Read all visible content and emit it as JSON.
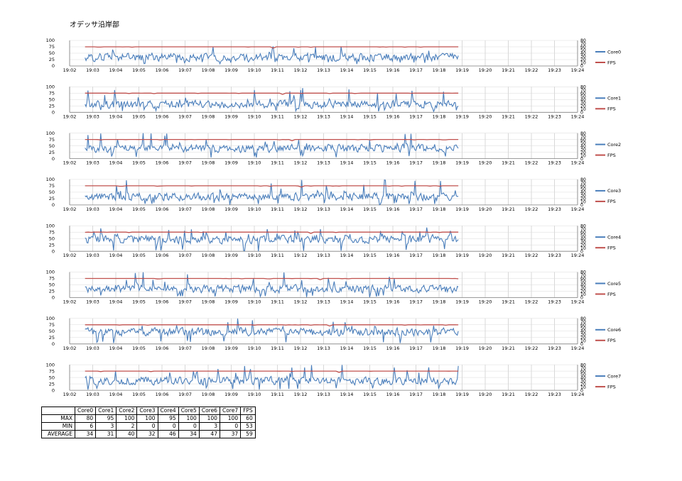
{
  "title": "オデッサ沿岸部",
  "legend_color_core": "#4a7ebb",
  "legend_color_fps": "#c0504d",
  "chart_data": [
    {
      "type": "line",
      "series": [
        {
          "name": "Core0",
          "avg": 34,
          "min": 6,
          "max": 80
        },
        {
          "name": "FPS",
          "avg": 59,
          "min": 53,
          "max": 60
        }
      ],
      "ylim": [
        0,
        100
      ],
      "ylim_right": [
        0,
        80
      ],
      "y_ticks": [
        "0",
        "25",
        "50",
        "75",
        "100"
      ],
      "y_ticks_right": [
        "0",
        "10",
        "20",
        "30",
        "40",
        "50",
        "60",
        "70",
        "80"
      ],
      "x_ticks": [
        "19:02",
        "19:03",
        "19:04",
        "19:05",
        "19:06",
        "19:07",
        "19:08",
        "19:09",
        "19:10",
        "19:11",
        "19:12",
        "19:13",
        "19:14",
        "19:15",
        "19:16",
        "19:17",
        "19:18",
        "19:19",
        "19:20",
        "19:21",
        "19:22",
        "19:23",
        "19:24"
      ],
      "data_span": [
        "19:02:40",
        "19:18:50"
      ]
    },
    {
      "type": "line",
      "series": [
        {
          "name": "Core1",
          "avg": 31,
          "min": 3,
          "max": 95
        },
        {
          "name": "FPS",
          "avg": 59,
          "min": 53,
          "max": 60
        }
      ],
      "ylim": [
        0,
        100
      ],
      "ylim_right": [
        0,
        80
      ],
      "y_ticks": [
        "0",
        "25",
        "50",
        "75",
        "100"
      ],
      "y_ticks_right": [
        "0",
        "10",
        "20",
        "30",
        "40",
        "50",
        "60",
        "70",
        "80"
      ],
      "x_ticks": [
        "19:02",
        "19:03",
        "19:04",
        "19:05",
        "19:06",
        "19:07",
        "19:08",
        "19:09",
        "19:10",
        "19:11",
        "19:12",
        "19:13",
        "19:14",
        "19:15",
        "19:16",
        "19:17",
        "19:18",
        "19:19",
        "19:20",
        "19:21",
        "19:22",
        "19:23",
        "19:24"
      ],
      "data_span": [
        "19:02:40",
        "19:18:50"
      ]
    },
    {
      "type": "line",
      "series": [
        {
          "name": "Core2",
          "avg": 40,
          "min": 2,
          "max": 100
        },
        {
          "name": "FPS",
          "avg": 59,
          "min": 53,
          "max": 60
        }
      ],
      "ylim": [
        0,
        100
      ],
      "ylim_right": [
        0,
        80
      ],
      "y_ticks": [
        "0",
        "25",
        "50",
        "75",
        "100"
      ],
      "y_ticks_right": [
        "0",
        "10",
        "20",
        "30",
        "40",
        "50",
        "60",
        "70",
        "80"
      ],
      "x_ticks": [
        "19:02",
        "19:03",
        "19:04",
        "19:05",
        "19:06",
        "19:07",
        "19:08",
        "19:09",
        "19:10",
        "19:11",
        "19:12",
        "19:13",
        "19:14",
        "19:15",
        "19:16",
        "19:17",
        "19:18",
        "19:19",
        "19:20",
        "19:21",
        "19:22",
        "19:23",
        "19:24"
      ],
      "data_span": [
        "19:02:40",
        "19:18:50"
      ]
    },
    {
      "type": "line",
      "series": [
        {
          "name": "Core3",
          "avg": 32,
          "min": 0,
          "max": 100
        },
        {
          "name": "FPS",
          "avg": 59,
          "min": 53,
          "max": 60
        }
      ],
      "ylim": [
        0,
        100
      ],
      "ylim_right": [
        0,
        80
      ],
      "y_ticks": [
        "0",
        "25",
        "50",
        "75",
        "100"
      ],
      "y_ticks_right": [
        "0",
        "10",
        "20",
        "30",
        "40",
        "50",
        "60",
        "70",
        "80"
      ],
      "x_ticks": [
        "19:02",
        "19:03",
        "19:04",
        "19:05",
        "19:06",
        "19:07",
        "19:08",
        "19:09",
        "19:10",
        "19:11",
        "19:12",
        "19:13",
        "19:14",
        "19:15",
        "19:16",
        "19:17",
        "19:18",
        "19:19",
        "19:20",
        "19:21",
        "19:22",
        "19:23",
        "19:24"
      ],
      "data_span": [
        "19:02:40",
        "19:18:50"
      ]
    },
    {
      "type": "line",
      "series": [
        {
          "name": "Core4",
          "avg": 46,
          "min": 0,
          "max": 95
        },
        {
          "name": "FPS",
          "avg": 59,
          "min": 53,
          "max": 60
        }
      ],
      "ylim": [
        0,
        100
      ],
      "ylim_right": [
        0,
        80
      ],
      "y_ticks": [
        "0",
        "25",
        "50",
        "75",
        "100"
      ],
      "y_ticks_right": [
        "0",
        "10",
        "20",
        "30",
        "40",
        "50",
        "60",
        "70",
        "80"
      ],
      "x_ticks": [
        "19:02",
        "19:03",
        "19:04",
        "19:05",
        "19:06",
        "19:07",
        "19:08",
        "19:09",
        "19:10",
        "19:11",
        "19:12",
        "19:13",
        "19:14",
        "19:15",
        "19:16",
        "19:17",
        "19:18",
        "19:19",
        "19:20",
        "19:21",
        "19:22",
        "19:23",
        "19:24"
      ],
      "data_span": [
        "19:02:40",
        "19:18:50"
      ]
    },
    {
      "type": "line",
      "series": [
        {
          "name": "Core5",
          "avg": 34,
          "min": 0,
          "max": 100
        },
        {
          "name": "FPS",
          "avg": 59,
          "min": 53,
          "max": 60
        }
      ],
      "ylim": [
        0,
        100
      ],
      "ylim_right": [
        0,
        80
      ],
      "y_ticks": [
        "0",
        "25",
        "50",
        "75",
        "100"
      ],
      "y_ticks_right": [
        "0",
        "10",
        "20",
        "30",
        "40",
        "50",
        "60",
        "70",
        "80"
      ],
      "x_ticks": [
        "19:02",
        "19:03",
        "19:04",
        "19:05",
        "19:06",
        "19:07",
        "19:08",
        "19:09",
        "19:10",
        "19:11",
        "19:12",
        "19:13",
        "19:14",
        "19:15",
        "19:16",
        "19:17",
        "19:18",
        "19:19",
        "19:20",
        "19:21",
        "19:22",
        "19:23",
        "19:24"
      ],
      "data_span": [
        "19:02:40",
        "19:18:50"
      ]
    },
    {
      "type": "line",
      "series": [
        {
          "name": "Core6",
          "avg": 47,
          "min": 3,
          "max": 100
        },
        {
          "name": "FPS",
          "avg": 59,
          "min": 53,
          "max": 60
        }
      ],
      "ylim": [
        0,
        100
      ],
      "ylim_right": [
        0,
        80
      ],
      "y_ticks": [
        "0",
        "25",
        "50",
        "75",
        "100"
      ],
      "y_ticks_right": [
        "0",
        "10",
        "20",
        "30",
        "40",
        "50",
        "60",
        "70",
        "80"
      ],
      "x_ticks": [
        "19:02",
        "19:03",
        "19:04",
        "19:05",
        "19:06",
        "19:07",
        "19:08",
        "19:09",
        "19:10",
        "19:11",
        "19:12",
        "19:13",
        "19:14",
        "19:15",
        "19:16",
        "19:17",
        "19:18",
        "19:19",
        "19:20",
        "19:21",
        "19:22",
        "19:23",
        "19:24"
      ],
      "data_span": [
        "19:02:40",
        "19:18:50"
      ]
    },
    {
      "type": "line",
      "series": [
        {
          "name": "Core7",
          "avg": 37,
          "min": 0,
          "max": 100
        },
        {
          "name": "FPS",
          "avg": 59,
          "min": 53,
          "max": 60
        }
      ],
      "ylim": [
        0,
        100
      ],
      "ylim_right": [
        0,
        80
      ],
      "y_ticks": [
        "0",
        "25",
        "50",
        "75",
        "100"
      ],
      "y_ticks_right": [
        "0",
        "10",
        "20",
        "30",
        "40",
        "50",
        "60",
        "70",
        "80"
      ],
      "x_ticks": [
        "19:02",
        "19:03",
        "19:04",
        "19:05",
        "19:06",
        "19:07",
        "19:08",
        "19:09",
        "19:10",
        "19:11",
        "19:12",
        "19:13",
        "19:14",
        "19:15",
        "19:16",
        "19:17",
        "19:18",
        "19:19",
        "19:20",
        "19:21",
        "19:22",
        "19:23",
        "19:24"
      ],
      "data_span": [
        "19:02:40",
        "19:18:50"
      ]
    }
  ],
  "stats_table": {
    "headers": [
      "",
      "Core0",
      "Core1",
      "Core2",
      "Core3",
      "Core4",
      "Core5",
      "Core6",
      "Core7",
      "FPS"
    ],
    "rows": [
      {
        "label": "MAX",
        "values": [
          "80",
          "95",
          "100",
          "100",
          "95",
          "100",
          "100",
          "100",
          "60"
        ]
      },
      {
        "label": "MIN",
        "values": [
          "6",
          "3",
          "2",
          "0",
          "0",
          "0",
          "3",
          "0",
          "53"
        ]
      },
      {
        "label": "AVERAGE",
        "values": [
          "34",
          "31",
          "40",
          "32",
          "46",
          "34",
          "47",
          "37",
          "59"
        ]
      }
    ]
  }
}
